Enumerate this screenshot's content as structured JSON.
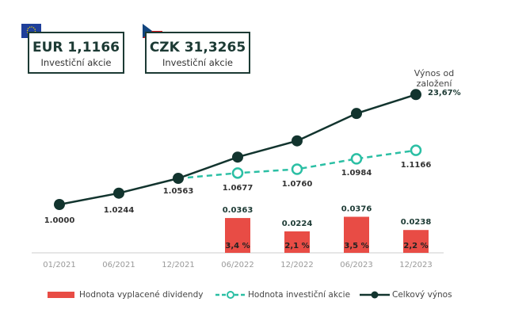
{
  "cards": [
    {
      "flag": "eu-flag",
      "value": "EUR 1,1166",
      "label": "Investiční akcie"
    },
    {
      "flag": "czech-flag",
      "value": "CZK 31,3265",
      "label": "Investiční akcie"
    }
  ],
  "chart_data": {
    "type": "line+bar",
    "categories": [
      "01/2021",
      "06/2021",
      "12/2021",
      "06/2022",
      "12/2022",
      "06/2023",
      "12/2023"
    ],
    "series": [
      {
        "name": "Celkový výnos",
        "type": "line",
        "color": "#12342e",
        "values": [
          1.0,
          1.0244,
          1.0563,
          1.102,
          1.137,
          1.196,
          1.2367
        ]
      },
      {
        "name": "Hodnota investiční akcie",
        "type": "line-dashed",
        "color": "#2bbfa4",
        "values": [
          null,
          null,
          1.0563,
          1.0677,
          1.076,
          1.0984,
          1.1166
        ]
      },
      {
        "name": "Hodnota vyplacené dividendy",
        "type": "bar",
        "color": "#e84c45",
        "values": [
          null,
          null,
          null,
          0.0363,
          0.0224,
          0.0376,
          0.0238
        ],
        "bar_labels": [
          "",
          "",
          "",
          "3,4 %",
          "2,1 %",
          "3,5 %",
          "2,2 %"
        ]
      }
    ],
    "point_labels": [
      "1.0000",
      "1.0244",
      "1.0563",
      "1.0677",
      "1.0760",
      "1.0984",
      "1.1166"
    ],
    "dividend_labels": [
      "",
      "",
      "",
      "0.0363",
      "0.0224",
      "0.0376",
      "0.0238"
    ],
    "annotation": {
      "title": "Výnos od založení",
      "value": "23,67%"
    },
    "legend": [
      "Hodnota vyplacené dividendy",
      "Hodnota investiční akcie",
      "Celkový výnos"
    ],
    "legend_position": "bottom",
    "grid": false
  }
}
